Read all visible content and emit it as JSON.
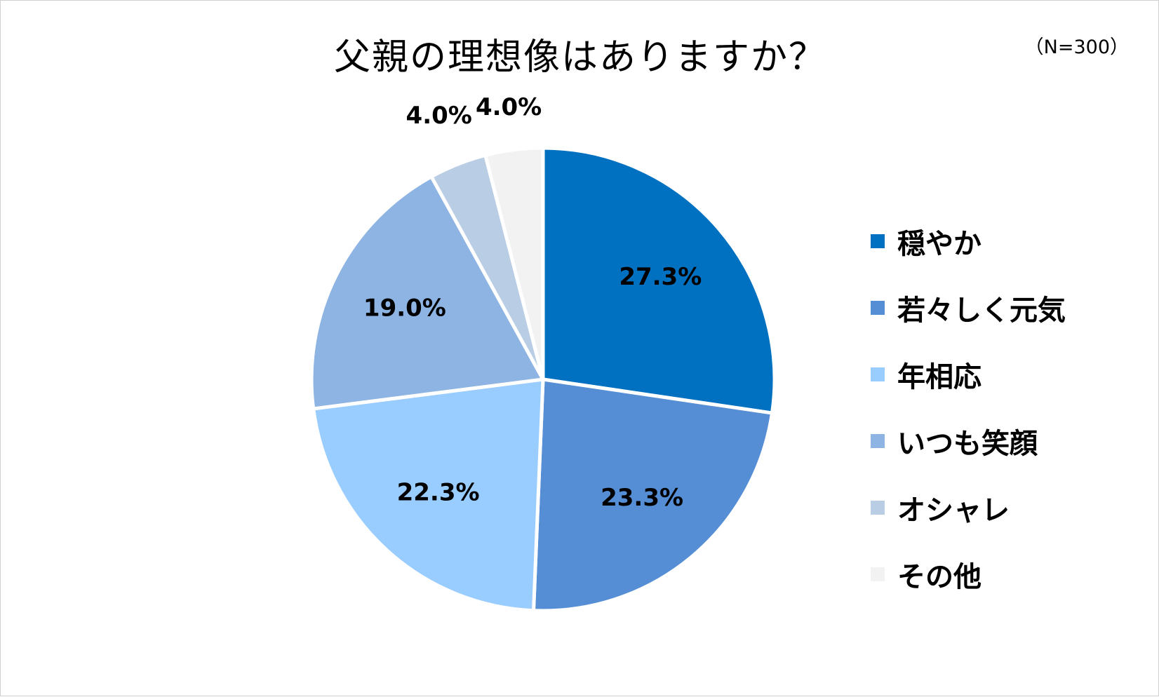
{
  "chart_data": {
    "type": "pie",
    "title": "父親の理想像はありますか？",
    "sample_note": "（N=300）",
    "categories": [
      "穏やか",
      "若々しく元気",
      "年相応",
      "いつも笑顔",
      "オシャレ",
      "その他"
    ],
    "values": [
      27.3,
      23.3,
      22.3,
      19.0,
      4.0,
      4.0
    ],
    "value_labels": [
      "27.3%",
      "23.3%",
      "22.3%",
      "19.0%",
      "4.0%",
      "4.0%"
    ],
    "colors": [
      "#0070c0",
      "#558ed5",
      "#99ccff",
      "#8eb4e3",
      "#b9cde5",
      "#f2f2f2"
    ],
    "legend_position": "right",
    "start_angle": "12 o'clock",
    "direction": "clockwise"
  }
}
